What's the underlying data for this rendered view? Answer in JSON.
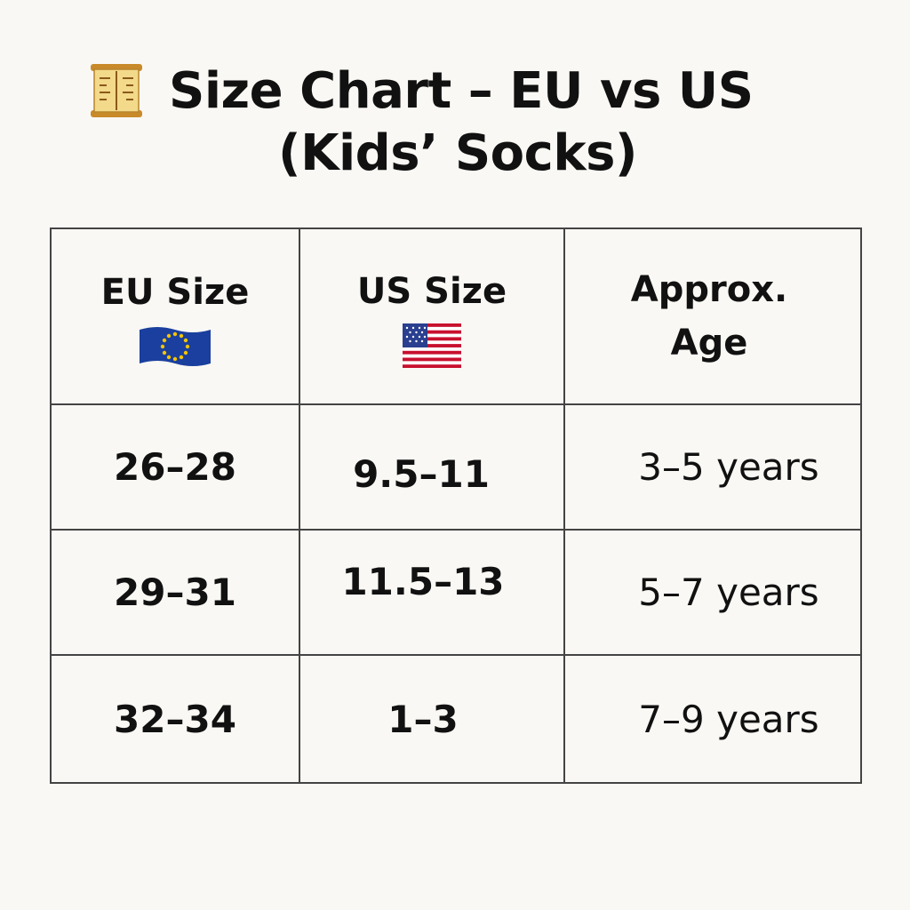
{
  "title": {
    "line1": "Size Chart – EU vs US",
    "line2": "(Kids’ Socks)",
    "icon": "ruler-scroll-icon"
  },
  "table": {
    "headers": {
      "eu": "EU Size",
      "us": "US Size",
      "age_line1": "Approx.",
      "age_line2": "Age"
    },
    "header_icons": {
      "eu": "eu-flag-icon",
      "us": "us-flag-icon"
    },
    "rows": [
      {
        "eu": "26–28",
        "us": "9.5–11",
        "age": "3–5 years"
      },
      {
        "eu": "29–31",
        "us": "11.5–13",
        "age": "5–7 years"
      },
      {
        "eu": "32–34",
        "us": "1–3",
        "age": "7–9 years"
      }
    ]
  },
  "colors": {
    "background": "#faf8f4",
    "text": "#111111",
    "grid": "#444444",
    "eu_flag_blue": "#1a3f9e",
    "eu_flag_star": "#f5c400",
    "us_flag_red": "#c8102e",
    "us_flag_blue": "#2a3f8f"
  }
}
